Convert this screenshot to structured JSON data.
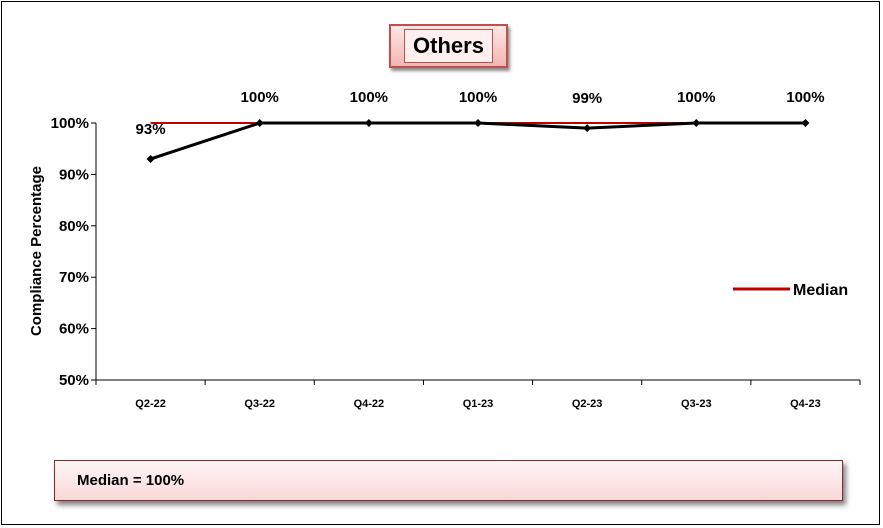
{
  "chart_data": {
    "type": "line",
    "title": "Others",
    "ylabel": "Compliance Percentage",
    "xlabel": "",
    "categories": [
      "Q2-22",
      "Q3-22",
      "Q4-22",
      "Q1-23",
      "Q2-23",
      "Q3-23",
      "Q4-23"
    ],
    "ylim": [
      50,
      100
    ],
    "yticks": [
      50,
      60,
      70,
      80,
      90,
      100
    ],
    "ytick_labels": [
      "50%",
      "60%",
      "70%",
      "80%",
      "90%",
      "100%"
    ],
    "series": [
      {
        "values": [
          93,
          100,
          100,
          100,
          99,
          100,
          100
        ],
        "labels": [
          "93%",
          "100%",
          "100%",
          "100%",
          "99%",
          "100%",
          "100%"
        ],
        "color": "#000000"
      },
      {
        "name": "Median",
        "values": [
          100,
          100,
          100,
          100,
          100,
          100,
          100
        ],
        "color": "#c00000"
      }
    ],
    "legend": "right",
    "grid": false
  },
  "median_note": "Median = 100%"
}
